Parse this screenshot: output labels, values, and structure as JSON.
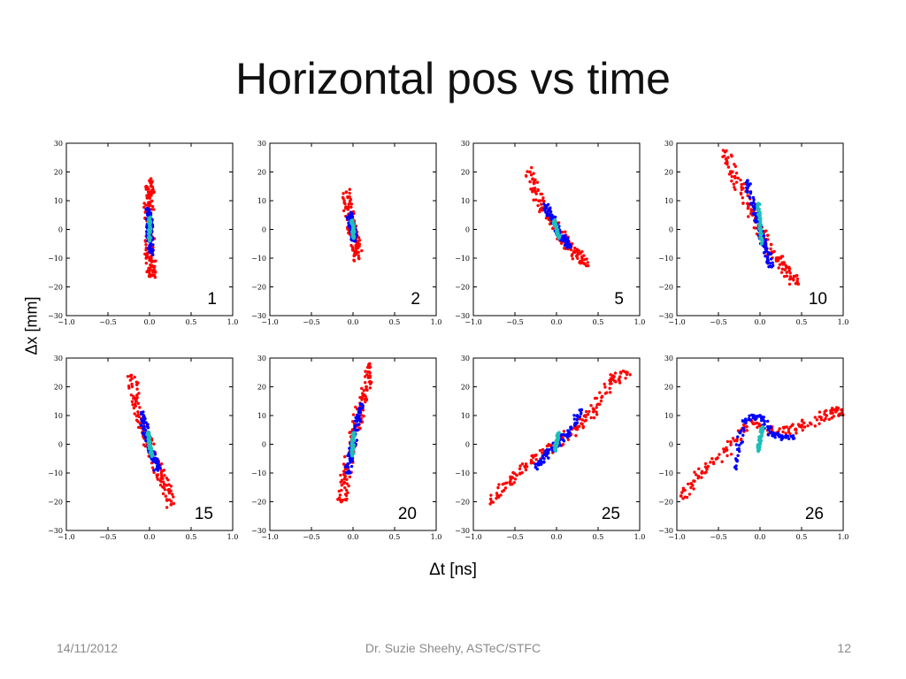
{
  "slide": {
    "title": "Horizontal pos vs time",
    "ylabel": "Δx [mm]",
    "xlabel": "Δt [ns]"
  },
  "footer": {
    "date": "14/11/2012",
    "author": "Dr. Suzie Sheehy, ASTeC/STFC",
    "page": "12"
  },
  "colors": {
    "outer": "#ff0000",
    "middle": "#0000ff",
    "core": "#1fbfb8"
  },
  "chart_data": [
    {
      "type": "scatter",
      "panel_label": "1",
      "xlim": [
        -1.0,
        1.0
      ],
      "ylim": [
        -30,
        30
      ],
      "xticks": [
        "−1.0",
        "−0.5",
        "0.0",
        "0.5",
        "1.0"
      ],
      "yticks": [
        "30",
        "20",
        "10",
        "0",
        "−10",
        "−20",
        "−30"
      ],
      "series": [
        {
          "color": "red",
          "points": [
            [
              0.0,
              17
            ],
            [
              0.0,
              12
            ],
            [
              -0.01,
              8
            ],
            [
              0.01,
              0
            ],
            [
              -0.01,
              -8
            ],
            [
              0.02,
              -13
            ],
            [
              0.03,
              -16
            ]
          ]
        },
        {
          "color": "blue",
          "points": [
            [
              -0.01,
              7
            ],
            [
              0.0,
              3
            ],
            [
              0.0,
              0
            ],
            [
              0.01,
              -4
            ],
            [
              0.01,
              -8
            ]
          ]
        },
        {
          "color": "cyan",
          "points": [
            [
              0.0,
              4
            ],
            [
              0.0,
              0
            ],
            [
              0.0,
              -4
            ]
          ]
        }
      ]
    },
    {
      "type": "scatter",
      "panel_label": "2",
      "xlim": [
        -1.0,
        1.0
      ],
      "ylim": [
        -30,
        30
      ],
      "xticks": [
        "−1.0",
        "−0.5",
        "0.0",
        "0.5",
        "1.0"
      ],
      "yticks": [
        "30",
        "20",
        "10",
        "0",
        "−10",
        "−20",
        "−30"
      ],
      "series": [
        {
          "color": "red",
          "points": [
            [
              -0.08,
              13
            ],
            [
              -0.06,
              7
            ],
            [
              -0.03,
              2
            ],
            [
              0.0,
              -2
            ],
            [
              0.04,
              -6
            ],
            [
              0.07,
              -10
            ]
          ]
        },
        {
          "color": "blue",
          "points": [
            [
              -0.04,
              5
            ],
            [
              -0.02,
              2
            ],
            [
              0.0,
              -1
            ],
            [
              0.02,
              -4
            ]
          ]
        },
        {
          "color": "cyan",
          "points": [
            [
              -0.01,
              3
            ],
            [
              0.0,
              0
            ],
            [
              0.01,
              -3
            ]
          ]
        }
      ]
    },
    {
      "type": "scatter",
      "panel_label": "5",
      "xlim": [
        -1.0,
        1.0
      ],
      "ylim": [
        -30,
        30
      ],
      "xticks": [
        "−1.0",
        "−0.5",
        "0.0",
        "0.5",
        "1.0"
      ],
      "yticks": [
        "30",
        "20",
        "10",
        "0",
        "−10",
        "−20",
        "−30"
      ],
      "series": [
        {
          "color": "red",
          "points": [
            [
              -0.32,
              20
            ],
            [
              -0.25,
              13
            ],
            [
              -0.12,
              6
            ],
            [
              0.0,
              0
            ],
            [
              0.12,
              -5
            ],
            [
              0.25,
              -9
            ],
            [
              0.34,
              -12
            ]
          ]
        },
        {
          "color": "blue",
          "points": [
            [
              -0.12,
              8
            ],
            [
              -0.05,
              4
            ],
            [
              0.02,
              -1
            ],
            [
              0.1,
              -4
            ],
            [
              0.15,
              -6
            ]
          ]
        },
        {
          "color": "cyan",
          "points": [
            [
              -0.03,
              3
            ],
            [
              0.0,
              0
            ],
            [
              0.03,
              -3
            ]
          ]
        }
      ]
    },
    {
      "type": "scatter",
      "panel_label": "10",
      "xlim": [
        -1.0,
        1.0
      ],
      "ylim": [
        -30,
        30
      ],
      "xticks": [
        "−1.0",
        "−0.5",
        "0.0",
        "0.5",
        "1.0"
      ],
      "yticks": [
        "30",
        "20",
        "10",
        "0",
        "−10",
        "−20",
        "−30"
      ],
      "series": [
        {
          "color": "red",
          "points": [
            [
              -0.42,
              27
            ],
            [
              -0.3,
              18
            ],
            [
              -0.15,
              9
            ],
            [
              0.0,
              0
            ],
            [
              0.15,
              -8
            ],
            [
              0.3,
              -14
            ],
            [
              0.46,
              -19
            ]
          ]
        },
        {
          "color": "blue",
          "points": [
            [
              -0.15,
              17
            ],
            [
              -0.08,
              8
            ],
            [
              0.0,
              0
            ],
            [
              0.07,
              -7
            ],
            [
              0.14,
              -13
            ]
          ]
        },
        {
          "color": "cyan",
          "points": [
            [
              -0.02,
              9
            ],
            [
              0.0,
              2
            ],
            [
              0.02,
              -5
            ]
          ]
        }
      ]
    },
    {
      "type": "scatter",
      "panel_label": "15",
      "xlim": [
        -1.0,
        1.0
      ],
      "ylim": [
        -30,
        30
      ],
      "xticks": [
        "−1.0",
        "−0.5",
        "0.0",
        "0.5",
        "1.0"
      ],
      "yticks": [
        "30",
        "20",
        "10",
        "0",
        "−10",
        "−20",
        "−30"
      ],
      "series": [
        {
          "color": "red",
          "points": [
            [
              -0.22,
              24
            ],
            [
              -0.16,
              15
            ],
            [
              -0.08,
              6
            ],
            [
              0.0,
              0
            ],
            [
              0.1,
              -8
            ],
            [
              0.18,
              -14
            ],
            [
              0.26,
              -21
            ]
          ]
        },
        {
          "color": "blue",
          "points": [
            [
              -0.1,
              11
            ],
            [
              -0.05,
              5
            ],
            [
              0.0,
              0
            ],
            [
              0.05,
              -5
            ],
            [
              0.1,
              -9
            ]
          ]
        },
        {
          "color": "cyan",
          "points": [
            [
              -0.02,
              4
            ],
            [
              0.0,
              0
            ],
            [
              0.03,
              -4
            ]
          ]
        }
      ]
    },
    {
      "type": "scatter",
      "panel_label": "20",
      "xlim": [
        -1.0,
        1.0
      ],
      "ylim": [
        -30,
        30
      ],
      "xticks": [
        "−1.0",
        "−0.5",
        "0.0",
        "0.5",
        "1.0"
      ],
      "yticks": [
        "30",
        "20",
        "10",
        "0",
        "−10",
        "−20",
        "−30"
      ],
      "series": [
        {
          "color": "red",
          "points": [
            [
              -0.14,
              -20
            ],
            [
              -0.1,
              -12
            ],
            [
              -0.04,
              -4
            ],
            [
              0.02,
              4
            ],
            [
              0.08,
              12
            ],
            [
              0.16,
              20
            ],
            [
              0.2,
              28
            ]
          ]
        },
        {
          "color": "blue",
          "points": [
            [
              -0.06,
              -10
            ],
            [
              -0.02,
              -3
            ],
            [
              0.02,
              3
            ],
            [
              0.06,
              9
            ],
            [
              0.09,
              14
            ]
          ]
        },
        {
          "color": "cyan",
          "points": [
            [
              -0.01,
              -4
            ],
            [
              0.0,
              0
            ],
            [
              0.01,
              4
            ]
          ]
        }
      ]
    },
    {
      "type": "scatter",
      "panel_label": "25",
      "xlim": [
        -1.0,
        1.0
      ],
      "ylim": [
        -30,
        30
      ],
      "xticks": [
        "−1.0",
        "−0.5",
        "0.0",
        "0.5",
        "1.0"
      ],
      "yticks": [
        "30",
        "20",
        "10",
        "0",
        "−10",
        "−20",
        "−30"
      ],
      "series": [
        {
          "color": "red",
          "points": [
            [
              -0.78,
              -20
            ],
            [
              -0.55,
              -12
            ],
            [
              -0.3,
              -6
            ],
            [
              0.0,
              0
            ],
            [
              0.25,
              6
            ],
            [
              0.45,
              12
            ],
            [
              0.65,
              22
            ],
            [
              0.85,
              25
            ]
          ]
        },
        {
          "color": "blue",
          "points": [
            [
              -0.25,
              -8
            ],
            [
              -0.1,
              -3
            ],
            [
              0.0,
              0
            ],
            [
              0.15,
              4
            ],
            [
              0.3,
              12
            ]
          ]
        },
        {
          "color": "cyan",
          "points": [
            [
              -0.02,
              -2
            ],
            [
              0.0,
              1
            ],
            [
              0.03,
              4
            ]
          ]
        }
      ]
    },
    {
      "type": "scatter",
      "panel_label": "26",
      "xlim": [
        -1.0,
        1.0
      ],
      "ylim": [
        -30,
        30
      ],
      "xticks": [
        "−1.0",
        "−0.5",
        "0.0",
        "0.5",
        "1.0"
      ],
      "yticks": [
        "30",
        "20",
        "10",
        "0",
        "−10",
        "−20",
        "−30"
      ],
      "series": [
        {
          "color": "red",
          "points": [
            [
              -0.95,
              -18
            ],
            [
              -0.7,
              -10
            ],
            [
              -0.4,
              -2
            ],
            [
              -0.1,
              8
            ],
            [
              0.2,
              4
            ],
            [
              0.5,
              6
            ],
            [
              0.8,
              10
            ],
            [
              0.98,
              12
            ]
          ]
        },
        {
          "color": "blue",
          "points": [
            [
              -0.3,
              -8
            ],
            [
              -0.2,
              8
            ],
            [
              0.0,
              10
            ],
            [
              0.15,
              3
            ],
            [
              0.4,
              2
            ]
          ]
        },
        {
          "color": "cyan",
          "points": [
            [
              -0.02,
              -2
            ],
            [
              0.0,
              2
            ],
            [
              0.03,
              6
            ]
          ]
        }
      ]
    }
  ]
}
